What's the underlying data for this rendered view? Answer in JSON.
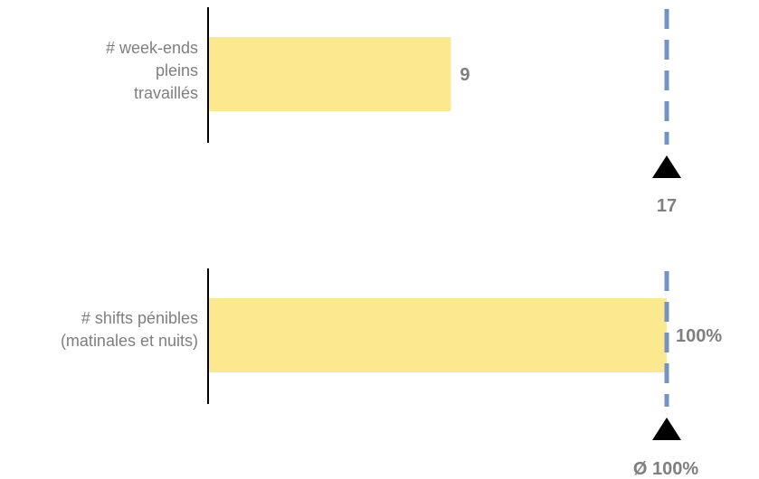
{
  "colors": {
    "bar": "#fce88f",
    "axis": "#000000",
    "reference_line": "#7194c4",
    "marker": "#000000",
    "text": "#7f7f7f"
  },
  "chart_data": [
    {
      "type": "bar",
      "orientation": "horizontal",
      "category": [
        "# week-ends",
        "pleins",
        "travaillés"
      ],
      "value": 9,
      "value_label": "9",
      "reference": {
        "value": 17,
        "label": "17",
        "line_style": "dashed"
      },
      "xlim": [
        0,
        17
      ]
    },
    {
      "type": "bar",
      "orientation": "horizontal",
      "category": [
        "# shifts pénibles",
        "(matinales et nuits)"
      ],
      "value": 100,
      "value_label": "100%",
      "reference": {
        "value": 100,
        "label": "Ø 100%",
        "line_style": "dashed"
      },
      "xlim": [
        0,
        100
      ]
    }
  ]
}
